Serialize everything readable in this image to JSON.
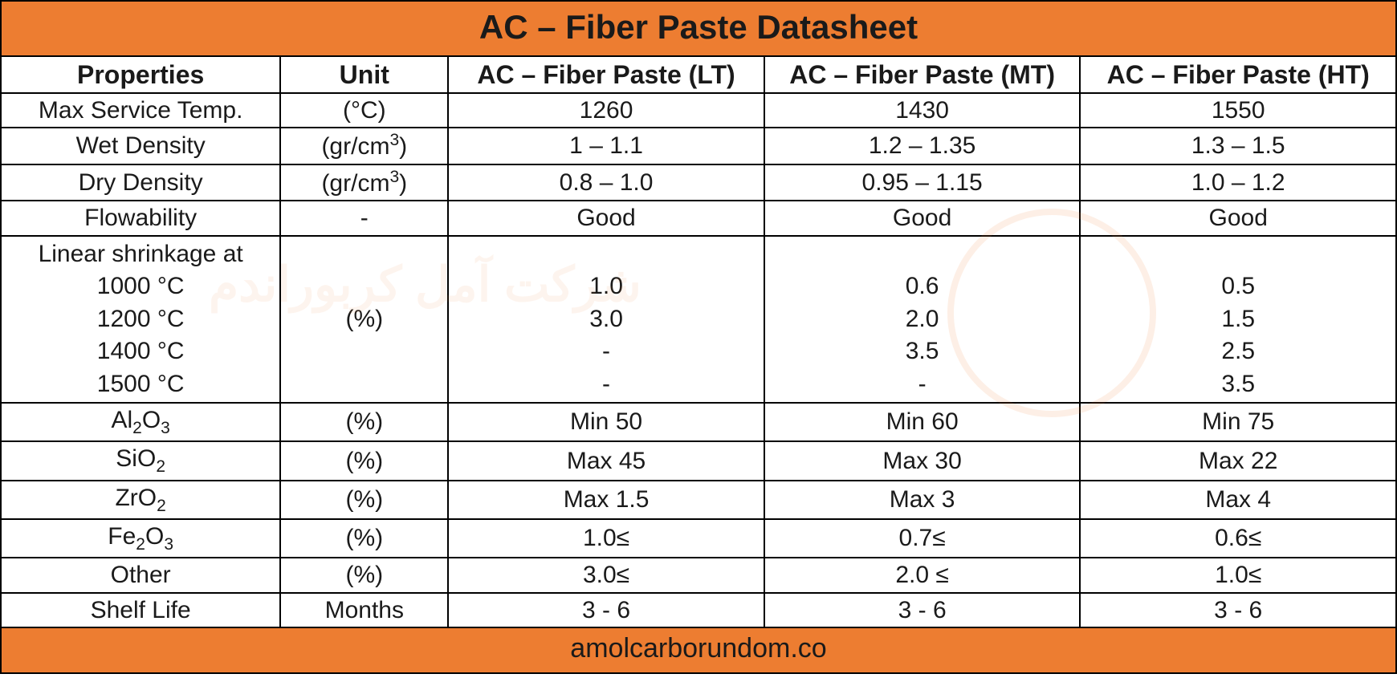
{
  "type": "table",
  "title": "AC – Fiber Paste Datasheet",
  "footer": "amolcarborundom.co",
  "colors": {
    "header_bg": "#ed7d31",
    "border": "#000000",
    "cell_bg": "#ffffff",
    "text": "#1a1a1a",
    "watermark": "#ed7d31"
  },
  "typography": {
    "title_fontsize_pt": 32,
    "header_fontsize_pt": 24,
    "body_fontsize_pt": 22,
    "footer_fontsize_pt": 26,
    "title_weight": "700",
    "header_weight": "700",
    "body_weight": "400"
  },
  "columns": [
    {
      "key": "prop",
      "label": "Properties",
      "width_pct": 20,
      "align": "center"
    },
    {
      "key": "unit",
      "label": "Unit",
      "width_pct": 12,
      "align": "center"
    },
    {
      "key": "lt",
      "label": "AC – Fiber Paste (LT)",
      "width_pct": 22.6,
      "align": "center"
    },
    {
      "key": "mt",
      "label": "AC – Fiber Paste (MT)",
      "width_pct": 22.6,
      "align": "center"
    },
    {
      "key": "ht",
      "label": "AC – Fiber Paste (HT)",
      "width_pct": 22.6,
      "align": "center"
    }
  ],
  "rows": {
    "max_service_temp": {
      "prop": "Max Service Temp.",
      "unit": "(°C)",
      "lt": "1260",
      "mt": "1430",
      "ht": "1550"
    },
    "wet_density": {
      "prop": "Wet Density",
      "unit_html": "(gr/cm<sup>3</sup>)",
      "unit": "(gr/cm3)",
      "lt": "1 – 1.1",
      "mt": "1.2 – 1.35",
      "ht": "1.3 – 1.5"
    },
    "dry_density": {
      "prop": "Dry Density",
      "unit_html": "(gr/cm<sup>3</sup>)",
      "unit": "(gr/cm3)",
      "lt": "0.8 – 1.0",
      "mt": "0.95 – 1.15",
      "ht": "1.0 – 1.2"
    },
    "flowability": {
      "prop": "Flowability",
      "unit": "-",
      "lt": "Good",
      "mt": "Good",
      "ht": "Good"
    },
    "linear_shrinkage": {
      "prop_lines": [
        "Linear shrinkage at",
        "1000 °C",
        "1200 °C",
        "1400 °C",
        "1500 °C"
      ],
      "unit": "(%)",
      "lt_lines": [
        "",
        "1.0",
        "3.0",
        "-",
        "-"
      ],
      "mt_lines": [
        "",
        "0.6",
        "2.0",
        "3.5",
        "-"
      ],
      "ht_lines": [
        "",
        "0.5",
        "1.5",
        "2.5",
        "3.5"
      ]
    },
    "al2o3": {
      "prop_html": "Al<sub>2</sub>O<sub>3</sub>",
      "prop": "Al2O3",
      "unit": "(%)",
      "lt": "Min 50",
      "mt": "Min 60",
      "ht": "Min 75"
    },
    "sio2": {
      "prop_html": "SiO<sub>2</sub>",
      "prop": "SiO2",
      "unit": "(%)",
      "lt": "Max 45",
      "mt": "Max 30",
      "ht": "Max 22"
    },
    "zro2": {
      "prop_html": "ZrO<sub>2</sub>",
      "prop": "ZrO2",
      "unit": "(%)",
      "lt": "Max 1.5",
      "mt": "Max 3",
      "ht": "Max 4"
    },
    "fe2o3": {
      "prop_html": "Fe<sub>2</sub>O<sub>3</sub>",
      "prop": "Fe2O3",
      "unit": "(%)",
      "lt": "1.0≤",
      "mt": "0.7≤",
      "ht": "0.6≤"
    },
    "other": {
      "prop": "Other",
      "unit": "(%)",
      "lt": "3.0≤",
      "mt": "2.0  ≤",
      "ht": "1.0≤"
    },
    "shelf_life": {
      "prop": "Shelf Life",
      "unit": "Months",
      "lt": "3 - 6",
      "mt": "3 - 6",
      "ht": "3 - 6"
    }
  }
}
